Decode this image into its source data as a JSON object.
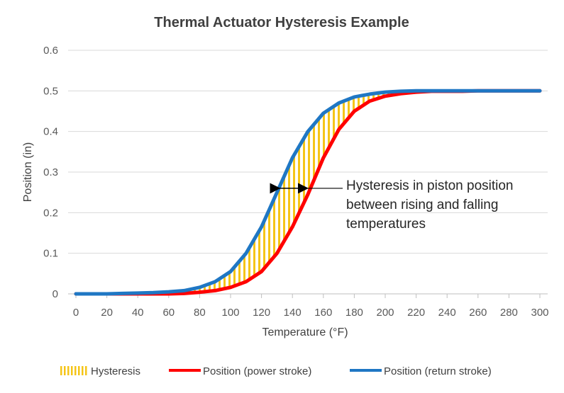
{
  "chart_data": {
    "type": "line",
    "title": "Thermal Actuator Hysteresis Example",
    "xlabel": "Temperature (°F)",
    "ylabel": "Position (in)",
    "xlim": [
      0,
      300
    ],
    "ylim": [
      0,
      0.6
    ],
    "x_ticks": [
      "0",
      "20",
      "40",
      "60",
      "80",
      "100",
      "120",
      "140",
      "160",
      "180",
      "200",
      "220",
      "240",
      "260",
      "280",
      "300"
    ],
    "y_ticks": [
      "0",
      "0.1",
      "0.2",
      "0.3",
      "0.4",
      "0.5",
      "0.6"
    ],
    "grid": true,
    "legend_position": "bottom",
    "x": [
      0,
      10,
      20,
      30,
      40,
      50,
      60,
      70,
      80,
      90,
      100,
      110,
      120,
      130,
      140,
      150,
      160,
      170,
      180,
      190,
      200,
      210,
      220,
      230,
      240,
      250,
      260,
      270,
      280,
      290,
      300
    ],
    "series": [
      {
        "name": "Hysteresis",
        "kind": "band",
        "color": "#f5c518"
      },
      {
        "name": "Position (power stroke)",
        "color": "#ff0000",
        "values": [
          0,
          0,
          0,
          0,
          0,
          0,
          0,
          0.001,
          0.004,
          0.008,
          0.016,
          0.03,
          0.055,
          0.1,
          0.165,
          0.245,
          0.335,
          0.405,
          0.45,
          0.475,
          0.487,
          0.493,
          0.497,
          0.499,
          0.499,
          0.499,
          0.5,
          0.5,
          0.5,
          0.5,
          0.5
        ]
      },
      {
        "name": "Position (return stroke)",
        "color": "#1f77c4",
        "values": [
          0,
          0,
          0,
          0.001,
          0.002,
          0.003,
          0.005,
          0.008,
          0.016,
          0.03,
          0.055,
          0.1,
          0.165,
          0.25,
          0.335,
          0.4,
          0.445,
          0.47,
          0.485,
          0.492,
          0.497,
          0.499,
          0.5,
          0.5,
          0.5,
          0.5,
          0.5,
          0.5,
          0.5,
          0.5,
          0.5
        ]
      }
    ],
    "annotation": {
      "lines": [
        "Hysteresis in piston position",
        "between rising and falling",
        "temperatures"
      ],
      "arrow_y": 0.26,
      "arrow_x_from": 130,
      "arrow_x_to": 150
    }
  }
}
